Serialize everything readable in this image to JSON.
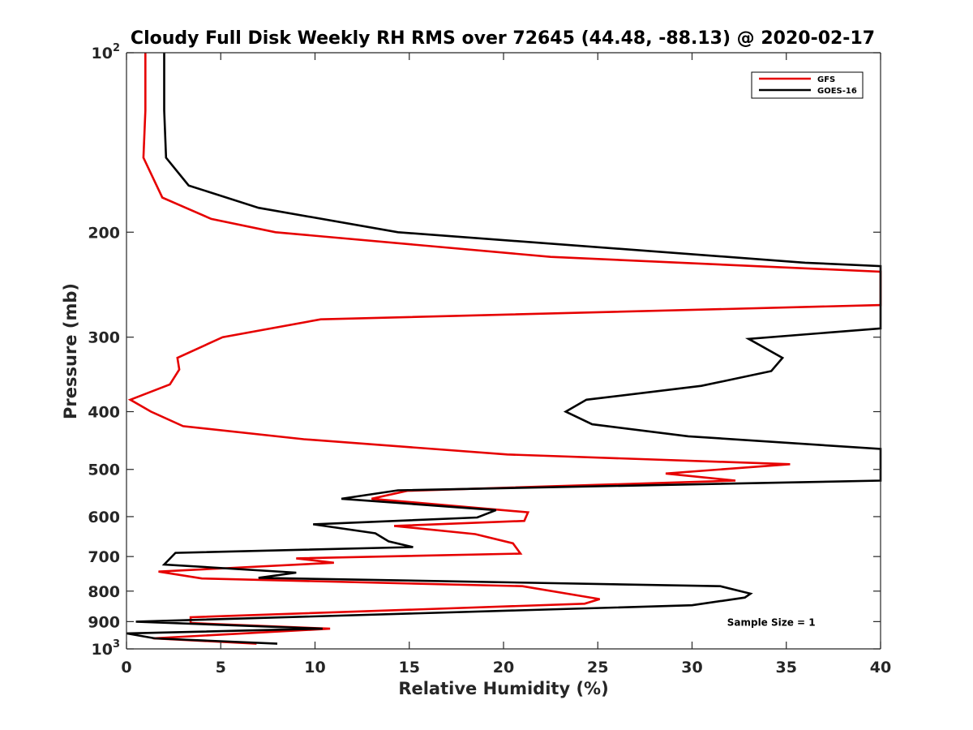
{
  "chart_data": {
    "type": "line",
    "title": "Cloudy Full Disk Weekly RH RMS over 72645 (44.48, -88.13) @ 2020-02-17",
    "xlabel": "Relative Humidity (%)",
    "ylabel": "Pressure (mb)",
    "xlim": [
      0,
      40
    ],
    "ylim": [
      100,
      1000
    ],
    "yscale": "log",
    "yreversed": true,
    "grid": false,
    "legend_position": "top-right",
    "x_ticks": [
      "0",
      "5",
      "10",
      "15",
      "20",
      "25",
      "30",
      "35",
      "40"
    ],
    "y_ticks": [
      {
        "value": 100,
        "base": "10",
        "exp": "2"
      },
      {
        "value": 200,
        "label": "200"
      },
      {
        "value": 300,
        "label": "300"
      },
      {
        "value": 400,
        "label": "400"
      },
      {
        "value": 500,
        "label": "500"
      },
      {
        "value": 600,
        "label": "600"
      },
      {
        "value": 700,
        "label": "700"
      },
      {
        "value": 800,
        "label": "800"
      },
      {
        "value": 900,
        "label": "900"
      },
      {
        "value": 1000,
        "base": "10",
        "exp": "3"
      }
    ],
    "series": [
      {
        "name": "GFS",
        "color": "#e60000",
        "points": [
          [
            1.0,
            100
          ],
          [
            1.0,
            125
          ],
          [
            0.9,
            150
          ],
          [
            1.9,
            175
          ],
          [
            4.5,
            190
          ],
          [
            7.9,
            200
          ],
          [
            22.5,
            220
          ],
          [
            40.0,
            233
          ],
          [
            40.0,
            265
          ],
          [
            10.3,
            280
          ],
          [
            5.1,
            300
          ],
          [
            2.7,
            325
          ],
          [
            2.8,
            340
          ],
          [
            2.3,
            360
          ],
          [
            0.2,
            382
          ],
          [
            1.3,
            400
          ],
          [
            3.0,
            423
          ],
          [
            9.4,
            445
          ],
          [
            20.2,
            472
          ],
          [
            35.2,
            490
          ],
          [
            28.6,
            508
          ],
          [
            32.3,
            522
          ],
          [
            14.9,
            543
          ],
          [
            13.0,
            560
          ],
          [
            21.3,
            590
          ],
          [
            21.1,
            610
          ],
          [
            14.2,
            622
          ],
          [
            18.5,
            642
          ],
          [
            20.5,
            665
          ],
          [
            20.9,
            692
          ],
          [
            9.0,
            705
          ],
          [
            11.0,
            717
          ],
          [
            1.7,
            742
          ],
          [
            4.0,
            762
          ],
          [
            21.0,
            785
          ],
          [
            25.1,
            825
          ],
          [
            24.3,
            840
          ],
          [
            3.4,
            885
          ],
          [
            3.4,
            905
          ],
          [
            10.8,
            925
          ],
          [
            1.4,
            960
          ],
          [
            6.9,
            980
          ]
        ]
      },
      {
        "name": "GOES-16",
        "color": "#000000",
        "points": [
          [
            2.0,
            100
          ],
          [
            2.0,
            125
          ],
          [
            2.1,
            150
          ],
          [
            3.3,
            167
          ],
          [
            7.0,
            182
          ],
          [
            14.4,
            200
          ],
          [
            36.0,
            225
          ],
          [
            40.0,
            228
          ],
          [
            40.0,
            290
          ],
          [
            33.0,
            302
          ],
          [
            34.8,
            325
          ],
          [
            34.2,
            342
          ],
          [
            30.5,
            362
          ],
          [
            24.4,
            382
          ],
          [
            23.3,
            400
          ],
          [
            24.7,
            420
          ],
          [
            29.8,
            440
          ],
          [
            40.0,
            462
          ],
          [
            40.0,
            522
          ],
          [
            14.4,
            542
          ],
          [
            11.4,
            560
          ],
          [
            19.6,
            585
          ],
          [
            18.6,
            602
          ],
          [
            9.9,
            618
          ],
          [
            13.2,
            640
          ],
          [
            13.9,
            660
          ],
          [
            15.2,
            675
          ],
          [
            2.6,
            690
          ],
          [
            2.0,
            722
          ],
          [
            9.0,
            745
          ],
          [
            7.0,
            760
          ],
          [
            31.5,
            785
          ],
          [
            33.1,
            808
          ],
          [
            32.8,
            820
          ],
          [
            30.0,
            845
          ],
          [
            0.5,
            900
          ],
          [
            10.4,
            925
          ],
          [
            0.0,
            942
          ],
          [
            1.5,
            960
          ],
          [
            8.0,
            980
          ]
        ]
      }
    ],
    "annotations": [
      {
        "text": "Sample Size = 1",
        "x": 34.2,
        "y": 900
      }
    ]
  }
}
